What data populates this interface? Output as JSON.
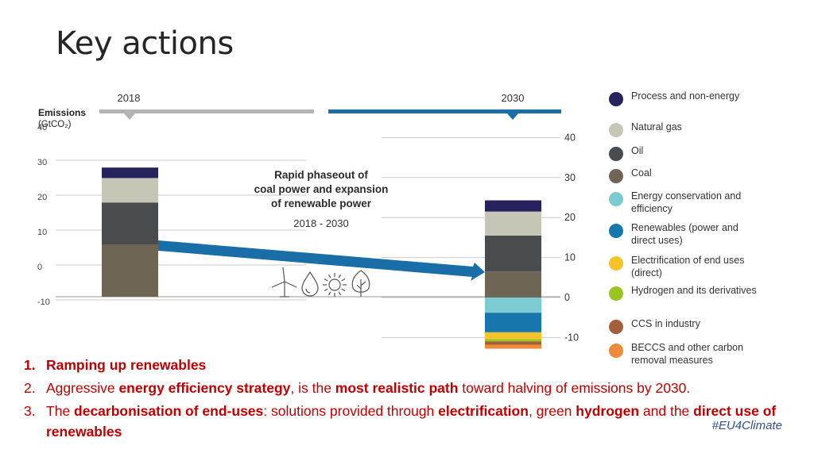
{
  "slide": {
    "title": "Key actions",
    "hashtag": "#EU4Climate"
  },
  "colors": {
    "process_non_energy": "#25225e",
    "natural_gas": "#c6c6b6",
    "oil": "#484c4f",
    "coal": "#6e6555",
    "energy_conservation": "#7ccbd3",
    "renewables": "#1776ac",
    "electrification": "#f5c22a",
    "hydrogen": "#9bc420",
    "ccs_industry": "#a35f3a",
    "beccs": "#ee8a3a",
    "arrow": "#1a6ea8",
    "timeline_2018": "#b4b4b4",
    "timeline_2030": "#1a6ea8",
    "action_text": "#c00000"
  },
  "chart_data": {
    "type": "bar",
    "stacked": true,
    "categories": [
      "2018",
      "2030"
    ],
    "ylabel": "Emissions",
    "ylabel_unit": "(GtCO₂)",
    "ylim": [
      -10,
      40
    ],
    "left_ticks": [
      "40",
      "30",
      "20",
      "10",
      "0",
      "-10"
    ],
    "right_ticks": [
      "40",
      "30",
      "20",
      "10",
      "0",
      "-10"
    ],
    "grid": true,
    "annotation": {
      "title_lines": [
        "Rapid phaseout of",
        "coal power and expansion",
        "of renewable power"
      ],
      "period": "2018 - 2030"
    },
    "icons": [
      "wind-turbine",
      "water-drop",
      "sun",
      "tree"
    ],
    "series": [
      {
        "name": "Process and non-energy",
        "key": "process_non_energy",
        "values": [
          3.0,
          2.8
        ]
      },
      {
        "name": "Natural gas",
        "key": "natural_gas",
        "values": [
          7.0,
          6.0
        ]
      },
      {
        "name": "Oil",
        "key": "oil",
        "values": [
          12.0,
          9.0
        ]
      },
      {
        "name": "Coal",
        "key": "coal",
        "values": [
          15.0,
          6.5
        ]
      },
      {
        "name": "Energy conservation and efficiency",
        "key": "energy_conservation",
        "values": [
          0,
          -3.8
        ]
      },
      {
        "name": "Renewables (power and direct uses)",
        "key": "renewables",
        "values": [
          0,
          -4.9
        ]
      },
      {
        "name": "Electrification of end uses (direct)",
        "key": "electrification",
        "values": [
          0,
          -1.7
        ]
      },
      {
        "name": "Hydrogen and its derivatives",
        "key": "hydrogen",
        "values": [
          0,
          -0.6
        ]
      },
      {
        "name": "CCS in industry",
        "key": "ccs_industry",
        "values": [
          0,
          -0.8
        ]
      },
      {
        "name": "BECCS and other carbon removal measures",
        "key": "beccs",
        "values": [
          0,
          -1.0
        ]
      }
    ]
  },
  "legend": [
    {
      "key": "process_non_energy",
      "label": "Process and non-energy"
    },
    {
      "key": "natural_gas",
      "label": "Natural gas"
    },
    {
      "key": "oil",
      "label": "Oil"
    },
    {
      "key": "coal",
      "label": "Coal"
    },
    {
      "key": "energy_conservation",
      "label": "Energy conservation and efficiency"
    },
    {
      "key": "renewables",
      "label": "Renewables (power and direct uses)"
    },
    {
      "key": "electrification",
      "label": "Electrification of end uses (direct)"
    },
    {
      "key": "hydrogen",
      "label": "Hydrogen and its derivatives"
    },
    {
      "key": "ccs_industry",
      "label": "CCS in industry"
    },
    {
      "key": "beccs",
      "label": "BECCS and other carbon removal measures"
    }
  ],
  "actions": [
    {
      "num": "1.",
      "parts": [
        {
          "t": "Ramping up renewables",
          "b": true
        }
      ]
    },
    {
      "num": "2.",
      "parts": [
        {
          "t": "Aggressive ",
          "b": false
        },
        {
          "t": "energy efficiency strategy",
          "b": true
        },
        {
          "t": ", is the ",
          "b": false
        },
        {
          "t": "most realistic path",
          "b": true
        },
        {
          "t": " toward halving of emissions by 2030.",
          "b": false
        }
      ]
    },
    {
      "num": "3.",
      "parts": [
        {
          "t": "The ",
          "b": false
        },
        {
          "t": "decarbonisation of end-uses",
          "b": true
        },
        {
          "t": ": solutions provided through ",
          "b": false
        },
        {
          "t": "electrification",
          "b": true
        },
        {
          "t": ", green ",
          "b": false
        },
        {
          "t": "hydrogen",
          "b": true
        },
        {
          "t": " and the ",
          "b": false
        },
        {
          "t": "direct use of renewables",
          "b": true
        }
      ]
    }
  ]
}
